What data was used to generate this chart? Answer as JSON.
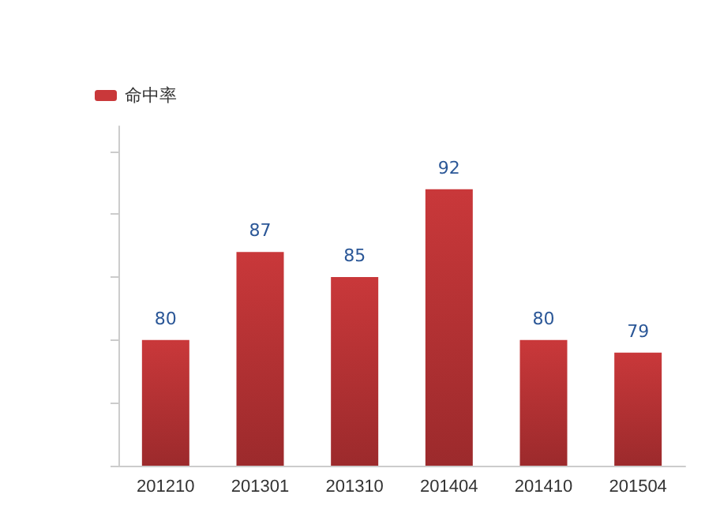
{
  "chart_data": {
    "type": "bar",
    "categories": [
      "201210",
      "201301",
      "201310",
      "201404",
      "201410",
      "201504"
    ],
    "series": [
      {
        "name": "命中率",
        "color": "#c9383a",
        "values": [
          80,
          87,
          85,
          92,
          80,
          79
        ]
      }
    ],
    "ylim": [
      70,
      97
    ],
    "yticks": [
      {
        "value": 70,
        "label": null
      },
      {
        "value": 75,
        "label": null
      },
      {
        "value": 80,
        "label": null
      },
      {
        "value": 85,
        "label": null
      },
      {
        "value": 90,
        "label": null
      },
      {
        "value": 95,
        "label": null
      }
    ],
    "tick_labels": "x",
    "data_labels": true,
    "legend": "top left",
    "grid": false
  }
}
